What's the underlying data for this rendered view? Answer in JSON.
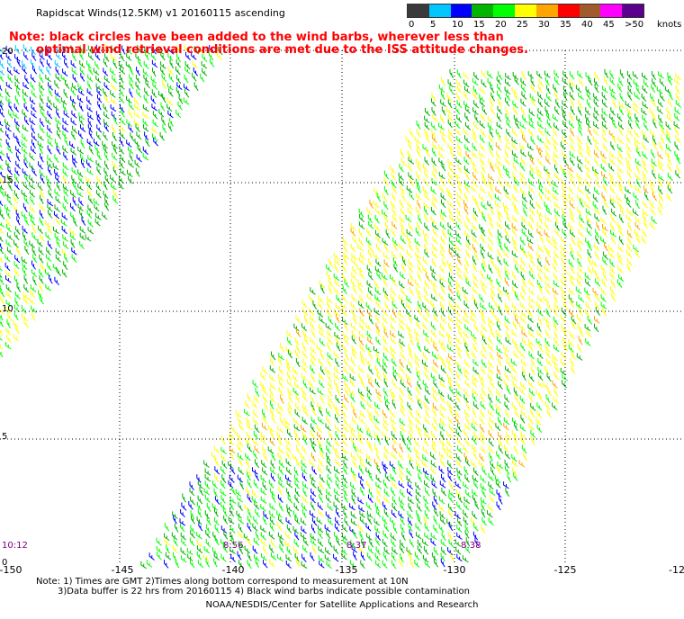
{
  "title": "Rapidscat Winds(12.5KM)  v1  20160115  ascending",
  "note": {
    "line1": "Note: black circles have been added to the wind barbs, wherever less than",
    "line2": "optimal wind retrieval conditions are met due to the ISS attitude changes."
  },
  "legend": {
    "unit": "knots",
    "bins": [
      {
        "label": "0",
        "color": "#3a3a3a"
      },
      {
        "label": "5",
        "color": "#00c8ff"
      },
      {
        "label": "10",
        "color": "#0000ff"
      },
      {
        "label": "15",
        "color": "#00b400"
      },
      {
        "label": "20",
        "color": "#00ff00"
      },
      {
        "label": "25",
        "color": "#ffff00"
      },
      {
        "label": "30",
        "color": "#ffa500"
      },
      {
        "label": "35",
        "color": "#ff0000"
      },
      {
        "label": "40",
        "color": "#a05a2c"
      },
      {
        "label": "45",
        "color": "#ff00ff"
      },
      {
        "label": ">50",
        "color": "#5a008c"
      }
    ]
  },
  "axes": {
    "x_ticks": [
      "-150",
      "-145",
      "-140",
      "-135",
      "-130",
      "-125",
      "-12"
    ],
    "y_ticks": [
      "0",
      "5",
      "10",
      "15",
      "20"
    ]
  },
  "pass_times": [
    "10:12",
    "8:56",
    "8:37",
    "8:38"
  ],
  "footer": {
    "line1": "Note: 1) Times are GMT 2)Times along bottom correspond to measurement at 10N",
    "line2": "3)Data buffer is 22 hrs from 20160115 4) Black wind barbs indicate possible contamination",
    "credit": "NOAA/NESDIS/Center for Satellite Applications and Research"
  }
}
